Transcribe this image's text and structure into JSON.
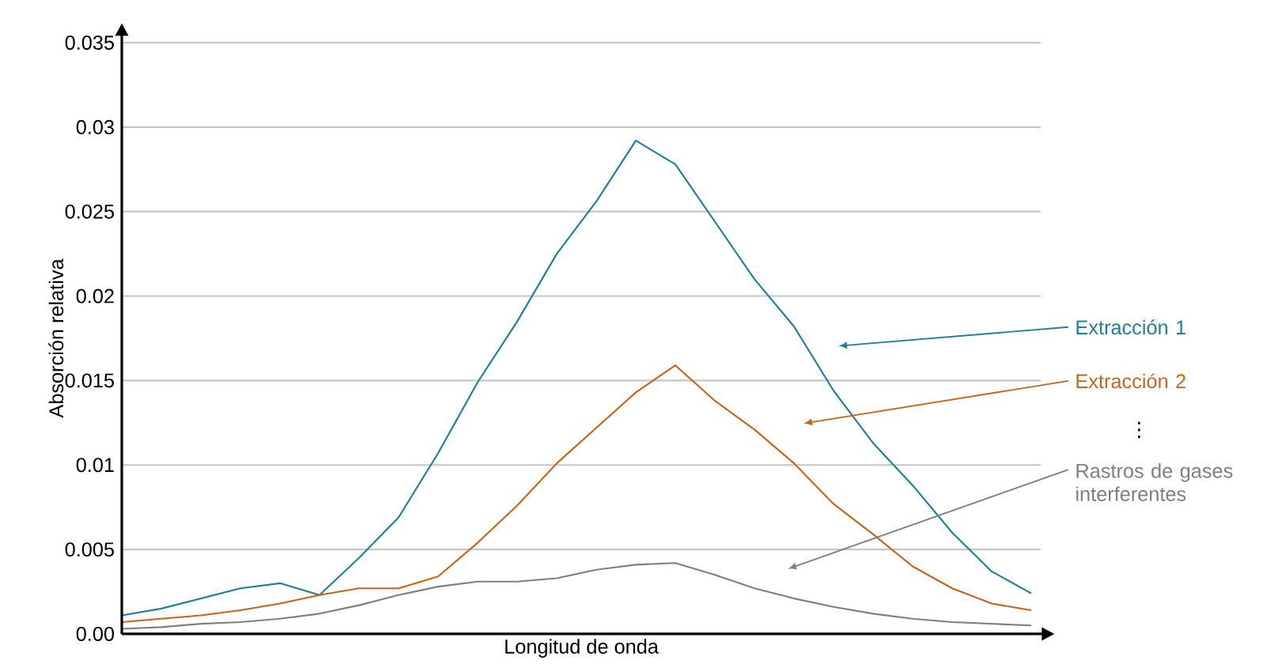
{
  "chart_data": {
    "type": "line",
    "xlabel": "Longitud de onda",
    "ylabel": "Absorción relativa",
    "categories": [
      null,
      null,
      null,
      null,
      null,
      null,
      null,
      null,
      null,
      null,
      null,
      null,
      null,
      null,
      null,
      null,
      null,
      null,
      null,
      null,
      null,
      null,
      null,
      null
    ],
    "series": [
      {
        "name": "Extracción 1",
        "color": "#1f7d9e",
        "values": [
          0.0011,
          0.0015,
          0.0021,
          0.0027,
          0.003,
          0.0023,
          0.0045,
          0.0069,
          0.0107,
          0.0149,
          0.0185,
          0.0225,
          0.0256,
          0.0292,
          0.0278,
          0.0244,
          0.021,
          0.0182,
          0.0144,
          0.0113,
          0.0088,
          0.006,
          0.0037,
          0.0024
        ]
      },
      {
        "name": "Extracción 2",
        "color": "#c8641a",
        "values": [
          0.0007,
          0.0009,
          0.0011,
          0.0014,
          0.0018,
          0.0023,
          0.0027,
          0.0027,
          0.0034,
          0.0054,
          0.0076,
          0.0101,
          0.0122,
          0.0143,
          0.0159,
          0.0138,
          0.0121,
          0.0101,
          0.0077,
          0.0059,
          0.004,
          0.0027,
          0.0018,
          0.0014
        ]
      },
      {
        "name": "Rastros de gases interferentes",
        "color": "#7f7f7f",
        "values": [
          0.0003,
          0.0004,
          0.0006,
          0.0007,
          0.0009,
          0.0012,
          0.0017,
          0.0023,
          0.0028,
          0.0031,
          0.0031,
          0.0033,
          0.0038,
          0.0041,
          0.0042,
          0.0035,
          0.0027,
          0.0021,
          0.0016,
          0.0012,
          0.0009,
          0.0007,
          0.0006,
          0.0005
        ]
      }
    ],
    "annotations": [
      "⋮"
    ],
    "ylim": [
      0,
      0.035
    ],
    "yticks": [
      {
        "value": 0,
        "label": "0.00"
      },
      0.005,
      0.01,
      0.015,
      0.02,
      0.025,
      0.03,
      0.035
    ],
    "grid": "y",
    "tick_labels": "y",
    "marker": "none",
    "line_style": "solid",
    "legend": false
  }
}
